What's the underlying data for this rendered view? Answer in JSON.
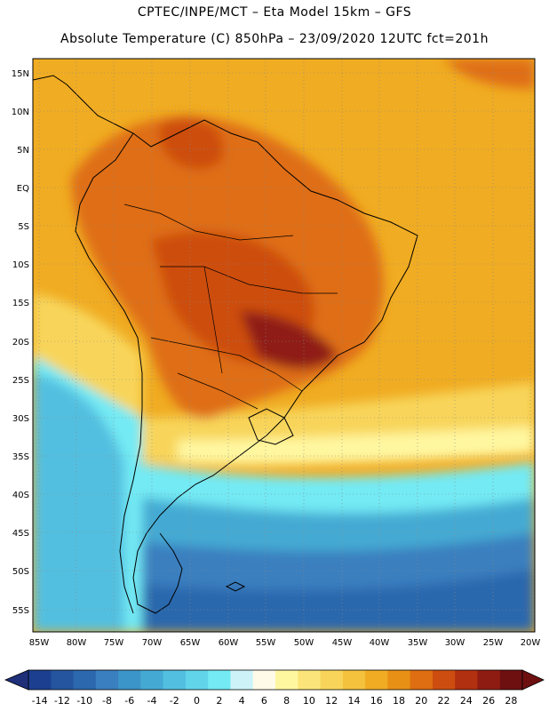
{
  "header": {
    "line1": "CPTEC/INPE/MCT – Eta Model 15km – GFS",
    "line2": "Absolute Temperature (C) 850hPa – 23/09/2020 12UTC fct=201h"
  },
  "map": {
    "lat_labels": [
      "15N",
      "10N",
      "5N",
      "EQ",
      "5S",
      "10S",
      "15S",
      "20S",
      "25S",
      "30S",
      "35S",
      "40S",
      "45S",
      "50S",
      "55S"
    ],
    "lon_labels": [
      "85W",
      "80W",
      "75W",
      "70W",
      "65W",
      "60W",
      "55W",
      "50W",
      "45W",
      "40W",
      "35W",
      "30W",
      "25W",
      "20W"
    ]
  },
  "colorbar": {
    "ticks": [
      "-14",
      "-12",
      "-10",
      "-8",
      "-6",
      "-4",
      "-2",
      "0",
      "2",
      "4",
      "6",
      "8",
      "10",
      "12",
      "14",
      "16",
      "18",
      "20",
      "22",
      "24",
      "26",
      "28"
    ],
    "colors": [
      "#1c3f8f",
      "#24559e",
      "#2c68ad",
      "#3a7fbf",
      "#3c95c8",
      "#45aad3",
      "#52bfe0",
      "#62d4ea",
      "#73eaf4",
      "#cdf3f8",
      "#fffbe8",
      "#fff7a0",
      "#fbe57a",
      "#f8d55a",
      "#f4c23c",
      "#f0ac22",
      "#e89016",
      "#df6e12",
      "#cd4d10",
      "#b13010",
      "#8f1c12",
      "#6e1010"
    ]
  }
}
